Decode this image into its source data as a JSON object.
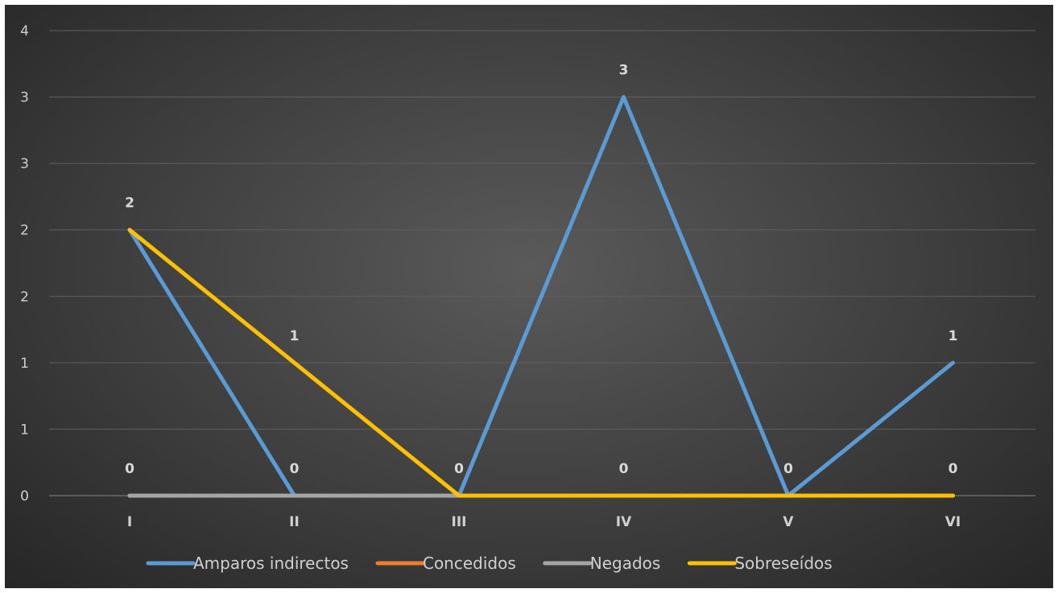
{
  "chart_data": {
    "type": "line",
    "categories": [
      "I",
      "II",
      "III",
      "IV",
      "V",
      "VI"
    ],
    "y_tick_labels": [
      "0",
      "1",
      "1",
      "2",
      "2",
      "3",
      "3",
      "4"
    ],
    "ylim": [
      0,
      3.5
    ],
    "grid": true,
    "legend_position": "bottom",
    "series": [
      {
        "name": "Amparos indirectos",
        "color": "#5b9bd5",
        "values": [
          2,
          0,
          0,
          3,
          0,
          1
        ]
      },
      {
        "name": "Concedidos",
        "color": "#ed7d31",
        "values": [
          0,
          0,
          0,
          0,
          0,
          0
        ]
      },
      {
        "name": "Negados",
        "color": "#a5a5a5",
        "values": [
          0,
          0,
          0,
          0,
          0,
          0
        ]
      },
      {
        "name": "Sobreseídos",
        "color": "#ffc000",
        "values": [
          2,
          1,
          0,
          0,
          0,
          0
        ]
      }
    ],
    "data_labels": [
      {
        "category_index": 0,
        "text": "2",
        "value": 2
      },
      {
        "category_index": 0,
        "text": "0",
        "value": 0
      },
      {
        "category_index": 1,
        "text": "1",
        "value": 1
      },
      {
        "category_index": 1,
        "text": "0",
        "value": 0
      },
      {
        "category_index": 2,
        "text": "0",
        "value": 0
      },
      {
        "category_index": 3,
        "text": "3",
        "value": 3
      },
      {
        "category_index": 3,
        "text": "0",
        "value": 0
      },
      {
        "category_index": 4,
        "text": "0",
        "value": 0
      },
      {
        "category_index": 5,
        "text": "1",
        "value": 1
      },
      {
        "category_index": 5,
        "text": "0",
        "value": 0
      }
    ]
  }
}
